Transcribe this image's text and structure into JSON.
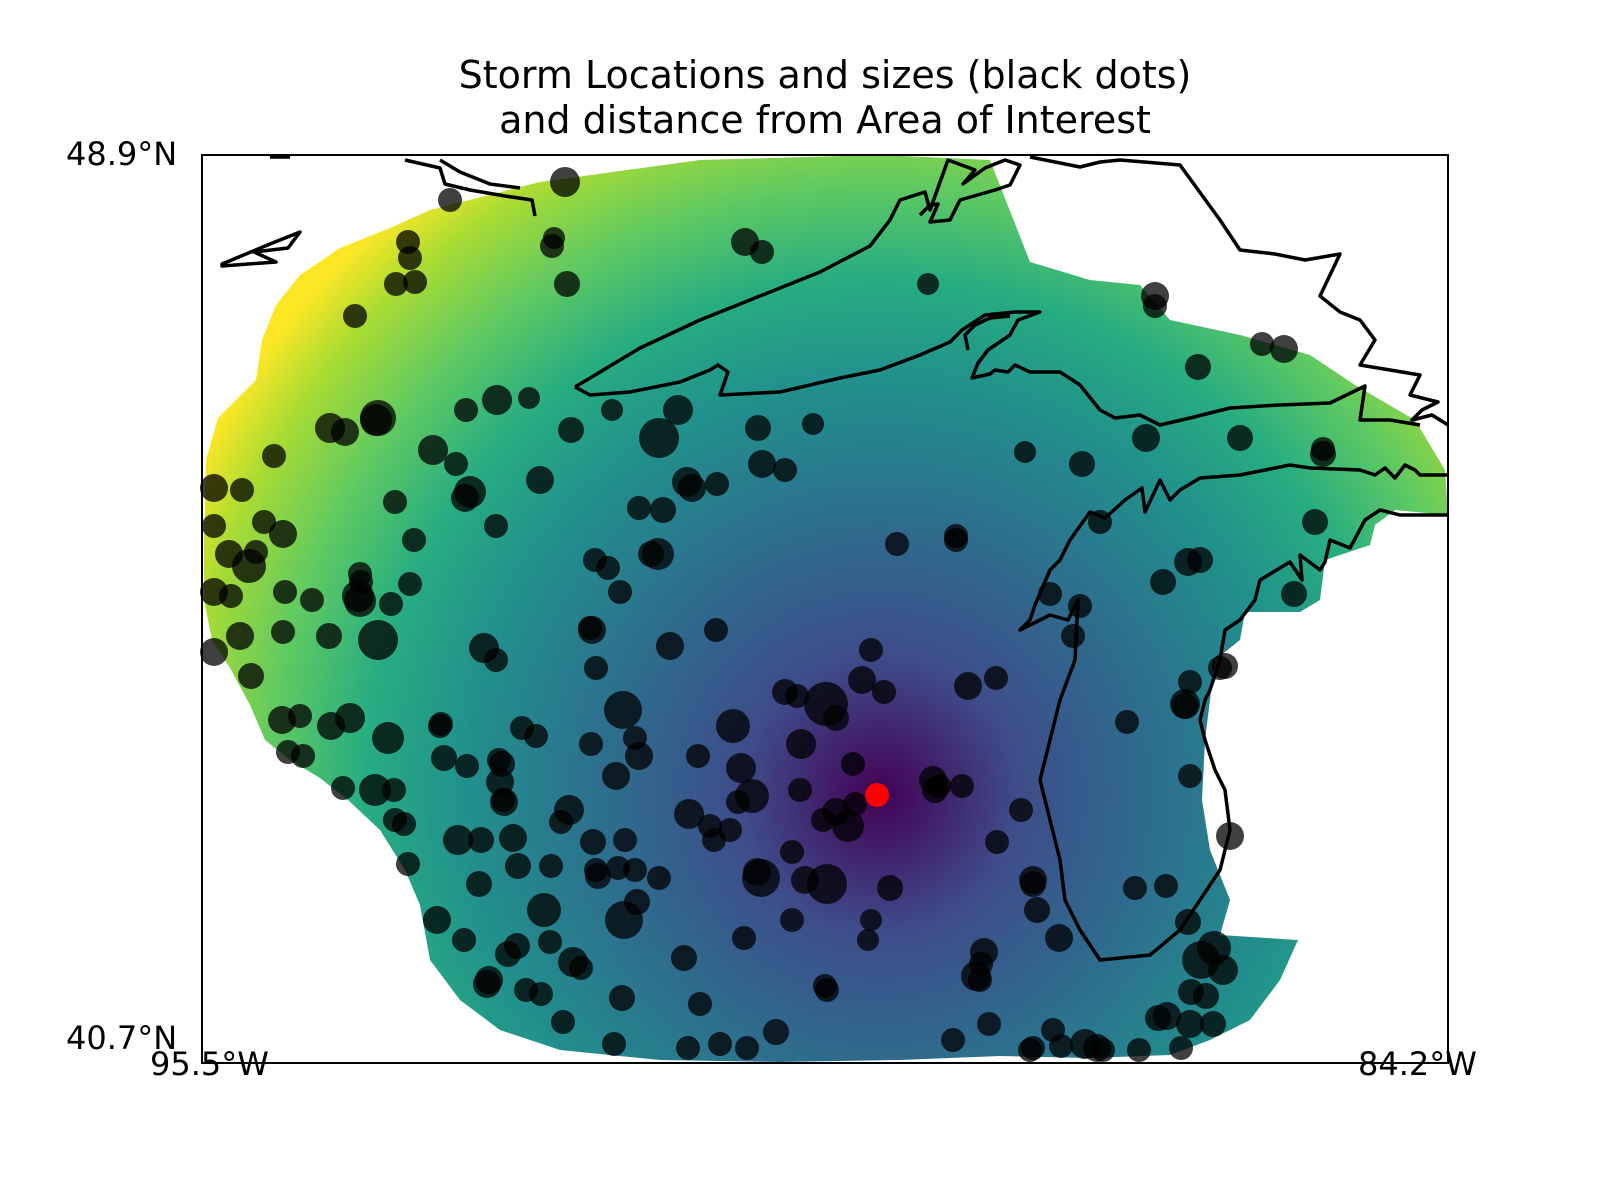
{
  "title": {
    "line1": "Storm Locations and sizes (black dots)",
    "line2": "and distance from Area of Interest"
  },
  "axes": {
    "lat_top": "48.9°N",
    "lat_bottom": "40.7°N",
    "lon_left": "95.5°W",
    "lon_right": "84.2°W"
  },
  "colors": {
    "background": "#ffffff",
    "storm_dots": "#000000",
    "area_of_interest": "#ff0000",
    "coastline": "#000000",
    "colormap": "viridis",
    "colormap_stops": [
      "#440154",
      "#3b528b",
      "#21918c",
      "#5ec962",
      "#fde725"
    ]
  },
  "legend": {
    "storm_dots": "black dots"
  },
  "chart_data": {
    "type": "scatter",
    "map_extent": {
      "lon": [
        -95.5,
        -84.2
      ],
      "lat": [
        40.7,
        48.9
      ]
    },
    "background_field": "distance from Area of Interest (viridis, dark = near)",
    "area_of_interest": {
      "lon": -89.4,
      "lat": 43.1
    }
  }
}
